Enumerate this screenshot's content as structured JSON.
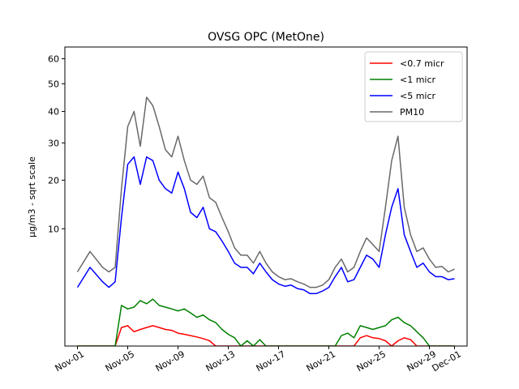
{
  "chart_data": {
    "type": "line",
    "title": "OVSG OPC (MetOne)",
    "xlabel": "",
    "ylabel": "µg/m3 - sqrt scale",
    "y_scale": "sqrt",
    "ylim": [
      0,
      65
    ],
    "y_ticks": [
      10,
      20,
      30,
      40,
      50,
      60
    ],
    "xlim": [
      "2021-10-31",
      "2021-12-02"
    ],
    "x_ticks": [
      "Nov-01",
      "Nov-05",
      "Nov-09",
      "Nov-13",
      "Nov-17",
      "Nov-21",
      "Nov-25",
      "Nov-29",
      "Dec-01"
    ],
    "x_tick_dates": [
      "2021-11-01",
      "2021-11-05",
      "2021-11-09",
      "2021-11-13",
      "2021-11-17",
      "2021-11-21",
      "2021-11-25",
      "2021-11-29",
      "2021-12-01"
    ],
    "grid": false,
    "legend_position": "top-right",
    "x": [
      "2021-11-01",
      "2021-11-02",
      "2021-11-03",
      "2021-11-03T12:00",
      "2021-11-04",
      "2021-11-04T12:00",
      "2021-11-05",
      "2021-11-05T12:00",
      "2021-11-06",
      "2021-11-06T12:00",
      "2021-11-07",
      "2021-11-07T12:00",
      "2021-11-08",
      "2021-11-08T12:00",
      "2021-11-09",
      "2021-11-09T12:00",
      "2021-11-10",
      "2021-11-10T12:00",
      "2021-11-11",
      "2021-11-11T12:00",
      "2021-11-12",
      "2021-11-12T12:00",
      "2021-11-13",
      "2021-11-13T12:00",
      "2021-11-14",
      "2021-11-14T12:00",
      "2021-11-15",
      "2021-11-15T12:00",
      "2021-11-16",
      "2021-11-16T12:00",
      "2021-11-17",
      "2021-11-17T12:00",
      "2021-11-18",
      "2021-11-18T12:00",
      "2021-11-19",
      "2021-11-19T12:00",
      "2021-11-20",
      "2021-11-20T12:00",
      "2021-11-21",
      "2021-11-21T12:00",
      "2021-11-22",
      "2021-11-22T12:00",
      "2021-11-23",
      "2021-11-23T12:00",
      "2021-11-24",
      "2021-11-24T12:00",
      "2021-11-25",
      "2021-11-25T12:00",
      "2021-11-26",
      "2021-11-26T12:00",
      "2021-11-27",
      "2021-11-27T12:00",
      "2021-11-28",
      "2021-11-28T12:00",
      "2021-11-29",
      "2021-11-29T12:00",
      "2021-11-30",
      "2021-11-30T12:00",
      "2021-12-01"
    ],
    "series": [
      {
        "name": "<0.7 micr",
        "color": "#ff0000",
        "values": [
          0,
          0,
          0,
          0,
          0,
          0.25,
          0.3,
          0.15,
          0.2,
          0.25,
          0.3,
          0.25,
          0.2,
          0.18,
          0.12,
          0.1,
          0.08,
          0.06,
          0.04,
          0.02,
          0,
          0,
          0,
          0,
          0,
          0,
          0,
          0,
          0,
          0,
          0,
          0,
          0,
          0,
          0,
          0,
          0,
          0,
          0,
          0,
          0,
          0,
          0,
          0.05,
          0.08,
          0.05,
          0.04,
          0.02,
          0,
          0.02,
          0.05,
          0.03,
          0,
          0,
          0,
          0,
          0,
          0,
          0
        ]
      },
      {
        "name": "<1 micr",
        "color": "#008000",
        "values": [
          0,
          0,
          0,
          0,
          0,
          1.2,
          1.0,
          1.1,
          1.5,
          1.3,
          1.6,
          1.2,
          1.1,
          1.0,
          0.9,
          1.0,
          0.8,
          0.6,
          0.7,
          0.5,
          0.4,
          0.2,
          0.1,
          0.05,
          0,
          0.02,
          0,
          0.03,
          0,
          0,
          0,
          0,
          0,
          0,
          0,
          0,
          0,
          0,
          0,
          0,
          0.08,
          0.12,
          0.05,
          0.3,
          0.25,
          0.2,
          0.25,
          0.3,
          0.5,
          0.6,
          0.4,
          0.3,
          0.15,
          0.05,
          0,
          0,
          0,
          0,
          0
        ]
      },
      {
        "name": "<5 micr",
        "color": "#0000ff",
        "values": [
          2.5,
          4.5,
          3.0,
          2.5,
          3.0,
          12.0,
          24.0,
          26.0,
          19.0,
          26.0,
          25.0,
          20.0,
          18.0,
          17.0,
          22.0,
          18.0,
          13.0,
          12.0,
          14.0,
          10.0,
          9.5,
          8.0,
          6.5,
          5.0,
          4.5,
          4.5,
          3.8,
          5.0,
          4.0,
          3.2,
          2.8,
          2.6,
          2.7,
          2.4,
          2.3,
          2.0,
          2.0,
          2.2,
          2.5,
          3.5,
          4.5,
          3.0,
          3.2,
          4.5,
          6.0,
          5.5,
          4.5,
          9.0,
          14.0,
          18.0,
          9.0,
          6.5,
          4.5,
          5.0,
          4.0,
          3.5,
          3.5,
          3.2,
          3.3
        ]
      },
      {
        "name": "PM10",
        "color": "#696969",
        "values": [
          4.0,
          6.5,
          4.5,
          4.0,
          4.5,
          18.0,
          35.0,
          40.0,
          29.0,
          45.0,
          42.0,
          35.0,
          28.0,
          26.0,
          32.0,
          25.0,
          20.0,
          19.0,
          21.0,
          16.0,
          15.0,
          12.0,
          9.5,
          7.0,
          6.0,
          6.0,
          5.0,
          6.5,
          5.0,
          4.0,
          3.5,
          3.2,
          3.3,
          3.0,
          2.8,
          2.5,
          2.5,
          2.7,
          3.2,
          4.5,
          5.5,
          4.0,
          4.5,
          6.5,
          8.5,
          7.5,
          6.5,
          14.0,
          25.0,
          32.0,
          14.0,
          9.0,
          6.5,
          7.0,
          5.5,
          4.5,
          4.6,
          4.0,
          4.3
        ]
      }
    ]
  }
}
